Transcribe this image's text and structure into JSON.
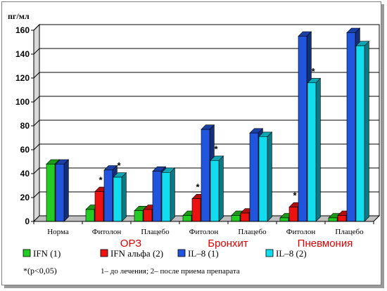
{
  "chart_data": {
    "type": "bar",
    "ylabel": "пг/мл",
    "ylim": [
      0,
      160
    ],
    "yticks": [
      0,
      20,
      40,
      60,
      80,
      100,
      120,
      140,
      160
    ],
    "grid": true,
    "categories": [
      "Норма",
      "Фитолон",
      "Плацебо",
      "Фитолон",
      "Плацебо",
      "Фитолон",
      "Плацебо"
    ],
    "groups": [
      {
        "label": "ОРЗ",
        "categories": [
          1,
          2
        ]
      },
      {
        "label": "Бронхит",
        "categories": [
          3,
          4
        ]
      },
      {
        "label": "Пневмония",
        "categories": [
          5,
          6
        ]
      }
    ],
    "series": [
      {
        "name": "IFN (1)",
        "color": "#22cc22",
        "values": [
          48,
          10,
          9,
          5,
          5,
          3,
          3
        ]
      },
      {
        "name": "IFN альфа (2)",
        "color": "#ee1111",
        "values": [
          null,
          25,
          10,
          19,
          7,
          12,
          5
        ]
      },
      {
        "name": "IL–8 (1)",
        "color": "#2255dd",
        "values": [
          48,
          43,
          42,
          77,
          74,
          155,
          158
        ]
      },
      {
        "name": "IL–8 (2)",
        "color": "#11ddee",
        "values": [
          null,
          37,
          41,
          51,
          71,
          116,
          147
        ]
      }
    ],
    "annotations": [
      {
        "text": "*",
        "category": 1,
        "series": 1
      },
      {
        "text": "*",
        "category": 1,
        "series": 3
      },
      {
        "text": "*",
        "category": 3,
        "series": 1
      },
      {
        "text": "*",
        "category": 3,
        "series": 3
      },
      {
        "text": "*",
        "category": 5,
        "series": 1
      },
      {
        "text": "*",
        "category": 5,
        "series": 3
      }
    ],
    "legend_position": "bottom"
  },
  "footnotes": {
    "significance": "*(p<0,05)",
    "explanation": "1– до лечения;   2– после приема препарата"
  }
}
